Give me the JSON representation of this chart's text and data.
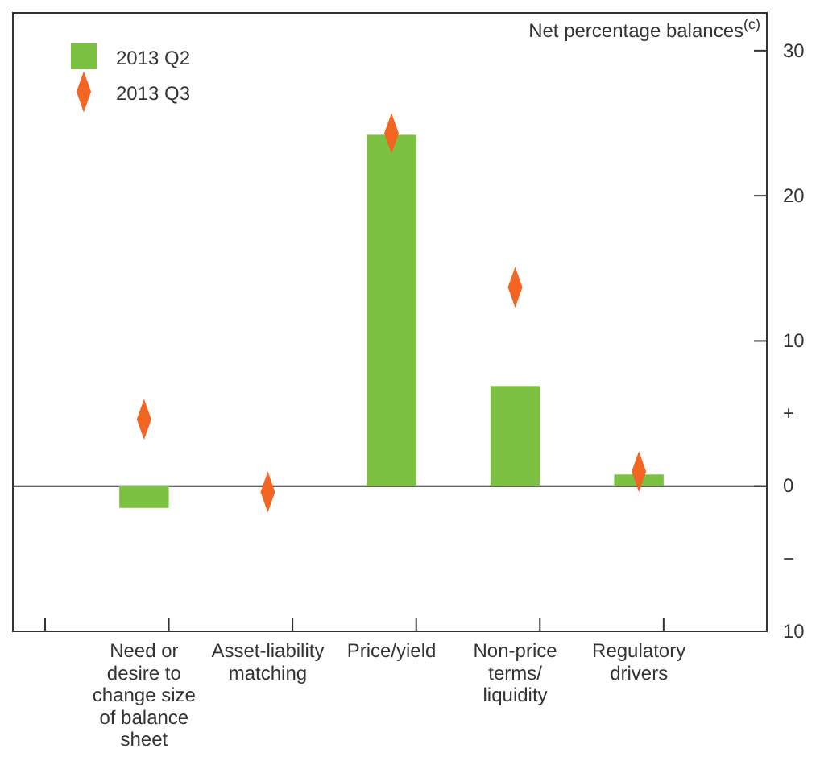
{
  "chart_data": {
    "type": "bar",
    "ylabel": "Net percentage balances$^{(c)}$",
    "categories": [
      "Need or desire to change size of balance sheet",
      "Asset-liability matching",
      "Price/yield",
      "Non-price terms/ liquidity",
      "Regulatory drivers"
    ],
    "series": [
      {
        "name": "2013 Q2",
        "color": "#7dc142",
        "values": [
          -1.5,
          0,
          24.2,
          6.9,
          0.8
        ]
      },
      {
        "name": "2013 Q3",
        "type": "scatter",
        "marker": "diamond",
        "color": "#f26522",
        "values": [
          4.6,
          -0.4,
          24.3,
          13.7,
          1.0
        ]
      }
    ],
    "ylim": [
      -10,
      32.6
    ],
    "ref_lines": [
      {
        "axis": "y",
        "value": 0
      }
    ],
    "yticks": [
      {
        "value": -10,
        "label": "10"
      },
      {
        "value": -5,
        "label": "−"
      },
      0,
      {
        "value": 5,
        "label": "+"
      },
      10,
      20,
      30
    ],
    "legend": "top left",
    "grid": false
  }
}
